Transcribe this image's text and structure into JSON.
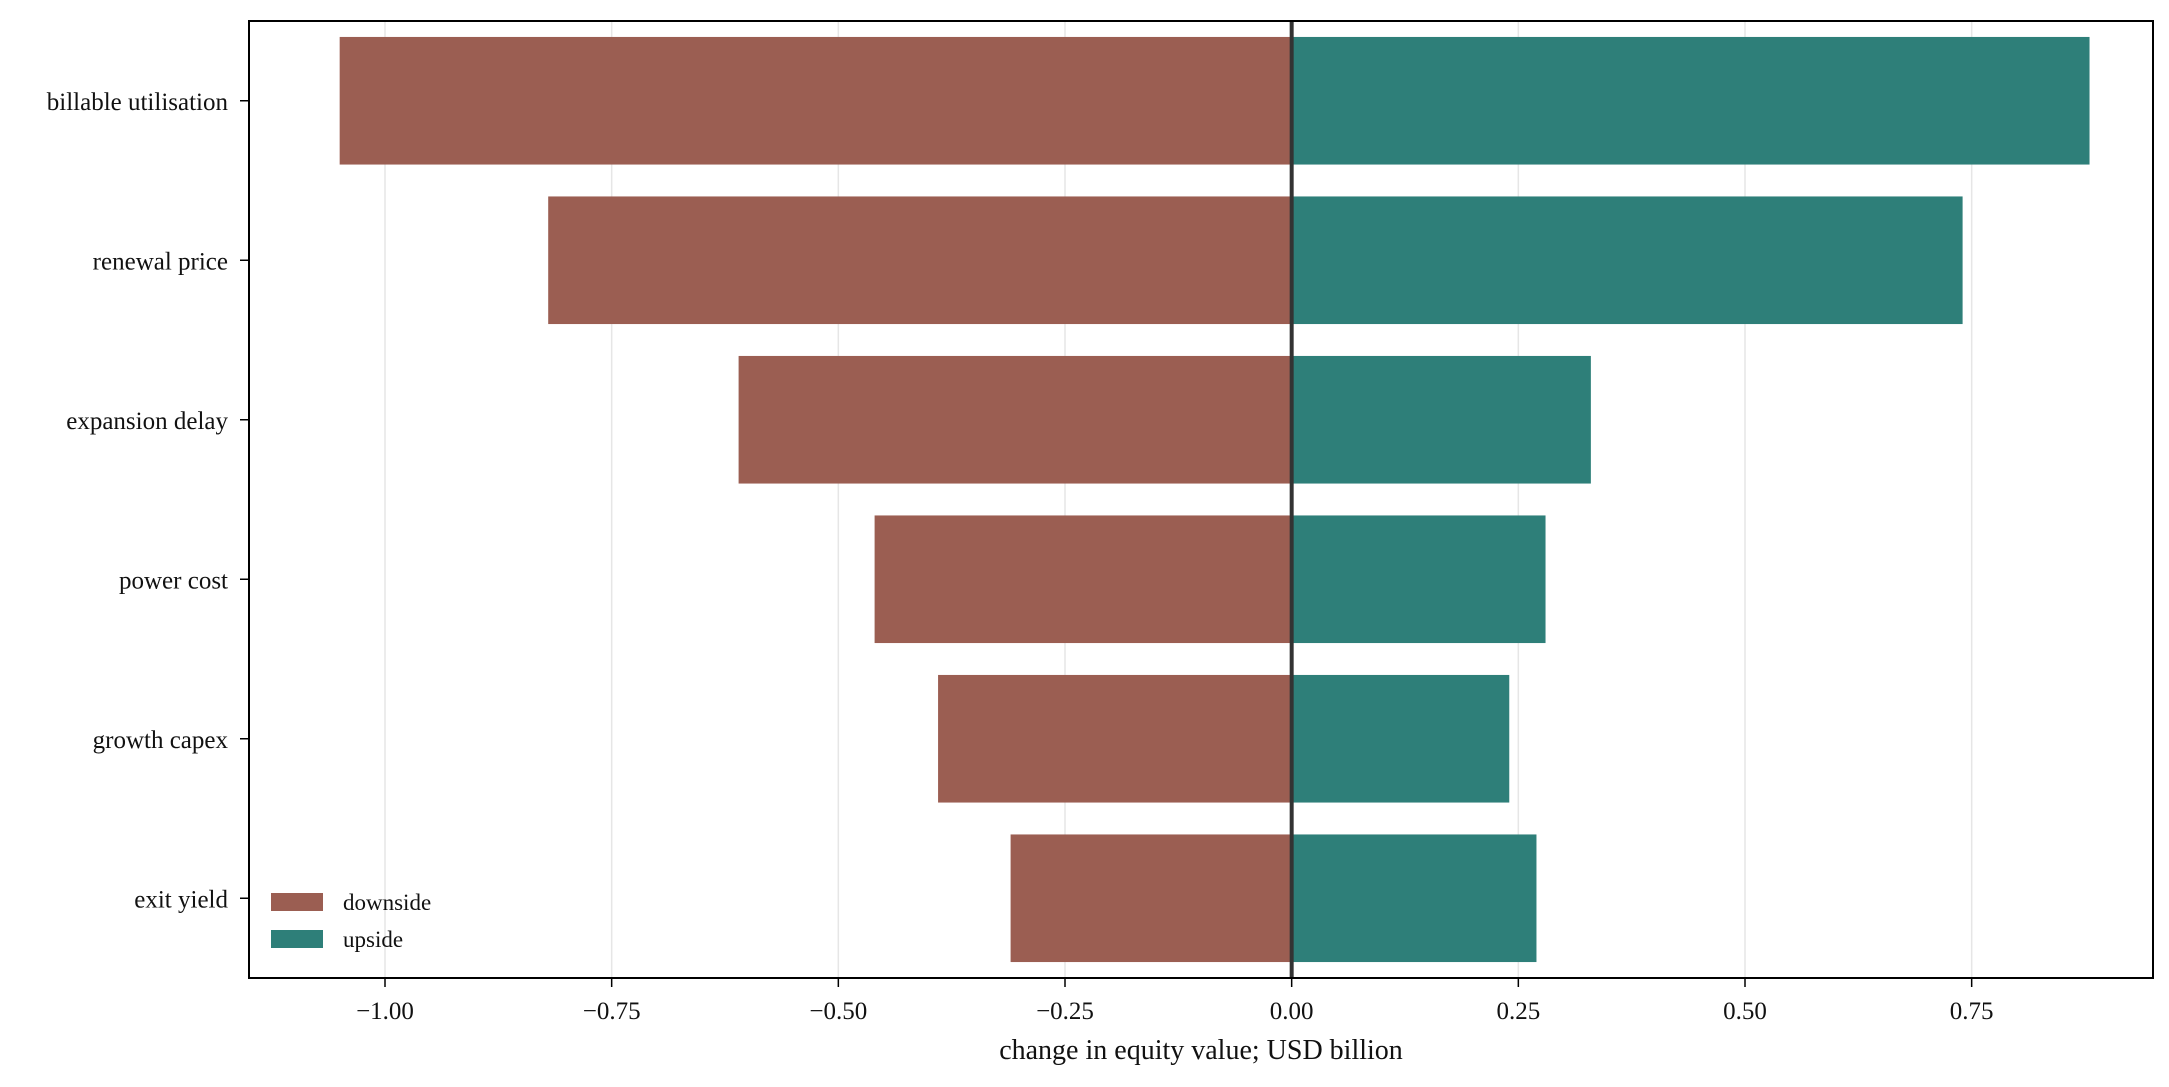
{
  "chart_data": {
    "type": "bar",
    "orientation": "horizontal",
    "variant": "tornado",
    "categories": [
      "billable utilisation",
      "renewal price",
      "expansion delay",
      "power cost",
      "growth capex",
      "exit yield"
    ],
    "series": [
      {
        "name": "downside",
        "color": "#9b5e52",
        "values": [
          -1.05,
          -0.82,
          -0.61,
          -0.46,
          -0.39,
          -0.31
        ]
      },
      {
        "name": "upside",
        "color": "#2e7f79",
        "values": [
          0.88,
          0.74,
          0.33,
          0.28,
          0.24,
          0.27
        ]
      }
    ],
    "xlabel": "change in equity value; USD billion",
    "ylabel": "",
    "xlim": [
      -1.15,
      0.95
    ],
    "xticks": [
      -1.0,
      -0.75,
      -0.5,
      -0.25,
      0.0,
      0.25,
      0.5,
      0.75
    ],
    "xtick_labels": [
      "−1.00",
      "−0.75",
      "−0.50",
      "−0.25",
      "0.00",
      "0.25",
      "0.50",
      "0.75"
    ],
    "grid": "vertical",
    "zero_line": true,
    "legend_position": "lower-left"
  }
}
